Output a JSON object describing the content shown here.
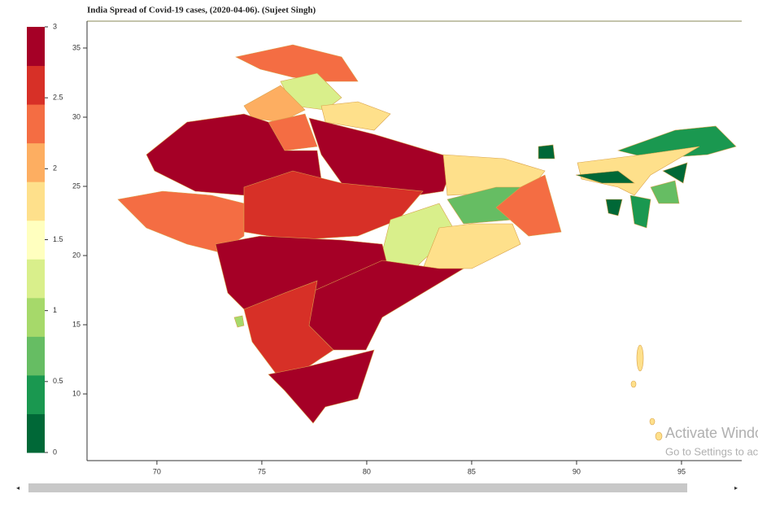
{
  "chart_data": {
    "type": "choropleth",
    "title": "India Spread of Covid-19 cases, (2020-04-06). (Sujeet Singh)",
    "xlim": [
      66.67,
      97.87
    ],
    "xticks": [
      70,
      75,
      80,
      85,
      90,
      95
    ],
    "ylim": [
      5.18,
      36.94
    ],
    "yticks": [
      10,
      15,
      20,
      25,
      30,
      35
    ],
    "colorbar": {
      "lim": [
        0,
        3
      ],
      "ticks": [
        0,
        0.5,
        1,
        1.5,
        2,
        2.5,
        3
      ],
      "colors": [
        "#006837",
        "#1a9850",
        "#66bd63",
        "#a6d96a",
        "#d9ef8b",
        "#ffffbf",
        "#fee08b",
        "#fdae61",
        "#f46d43",
        "#d73027",
        "#a50026"
      ]
    }
  },
  "watermark": {
    "line1": "Activate Windows",
    "line2": "Go to Settings to activate Windows."
  }
}
